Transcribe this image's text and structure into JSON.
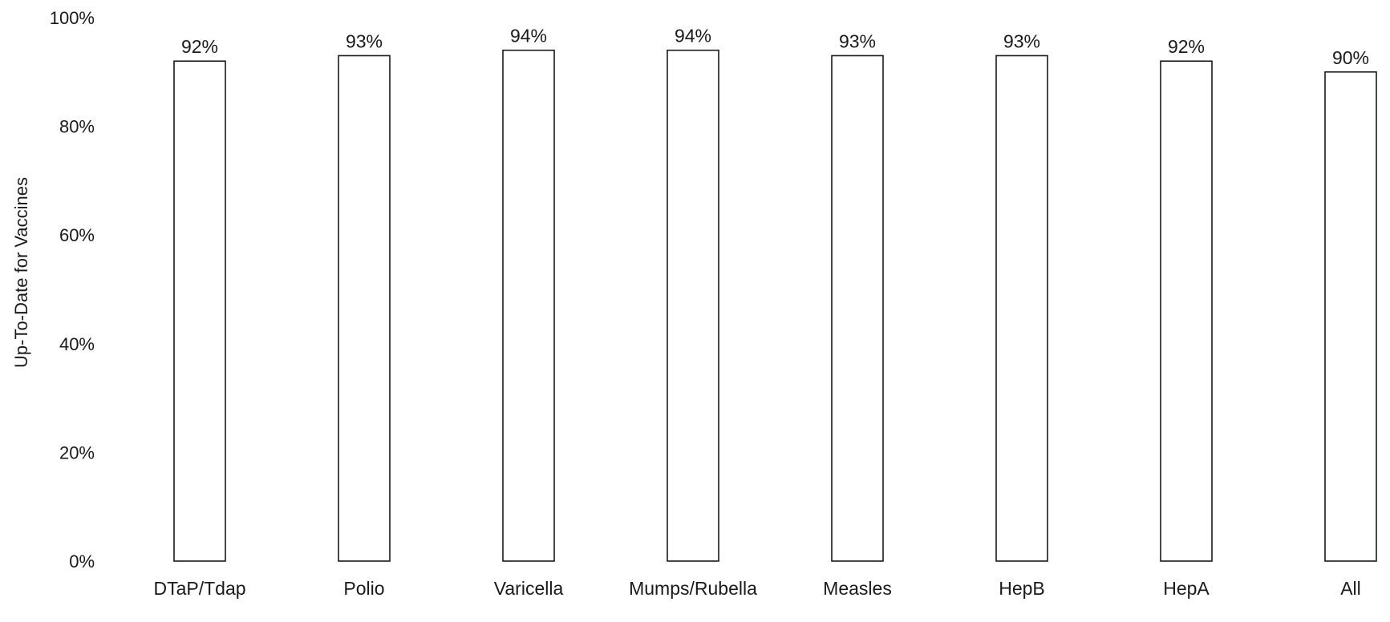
{
  "chart_data": {
    "type": "bar",
    "title": "",
    "xlabel": "",
    "ylabel": "Up-To-Date for Vaccines",
    "categories": [
      "DTaP/Tdap",
      "Polio",
      "Varicella",
      "Mumps/Rubella",
      "Measles",
      "HepB",
      "HepA",
      "All"
    ],
    "values": [
      92,
      93,
      94,
      94,
      93,
      93,
      92,
      90
    ],
    "data_labels": [
      "92%",
      "93%",
      "94%",
      "94%",
      "93%",
      "93%",
      "92%",
      "90%"
    ],
    "ylim": [
      0,
      100
    ],
    "y_ticks": [
      0,
      20,
      40,
      60,
      80,
      100
    ],
    "y_tick_labels": [
      "0%",
      "20%",
      "40%",
      "60%",
      "80%",
      "100%"
    ],
    "grid": false,
    "legend": "none",
    "colors": {
      "bar_fill": "#ffffff",
      "bar_stroke": "#1a1a1a",
      "text": "#1a1a1a"
    }
  }
}
